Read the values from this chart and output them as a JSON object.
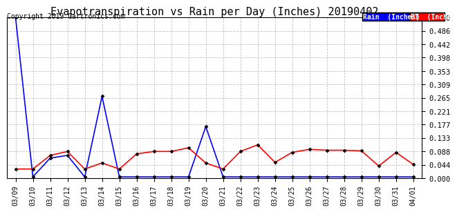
{
  "title": "Evapotranspiration vs Rain per Day (Inches) 20190402",
  "copyright": "Copyright 2019 Cartronics.com",
  "x_labels": [
    "03/09",
    "03/10",
    "03/11",
    "03/12",
    "03/13",
    "03/14",
    "03/15",
    "03/16",
    "03/17",
    "03/18",
    "03/19",
    "03/20",
    "03/21",
    "03/22",
    "03/23",
    "03/24",
    "03/25",
    "03/26",
    "03/27",
    "03/28",
    "03/29",
    "03/30",
    "03/31",
    "04/01"
  ],
  "rain": [
    0.53,
    0.004,
    0.066,
    0.075,
    0.004,
    0.27,
    0.004,
    0.004,
    0.004,
    0.004,
    0.004,
    0.17,
    0.004,
    0.004,
    0.004,
    0.004,
    0.004,
    0.004,
    0.004,
    0.004,
    0.004,
    0.004,
    0.004,
    0.004
  ],
  "et": [
    0.03,
    0.03,
    0.075,
    0.088,
    0.03,
    0.05,
    0.03,
    0.08,
    0.088,
    0.088,
    0.1,
    0.05,
    0.03,
    0.088,
    0.11,
    0.052,
    0.085,
    0.095,
    0.092,
    0.092,
    0.09,
    0.04,
    0.085,
    0.045
  ],
  "ylim": [
    0.0,
    0.53
  ],
  "yticks": [
    0.0,
    0.044,
    0.088,
    0.133,
    0.177,
    0.221,
    0.265,
    0.309,
    0.353,
    0.398,
    0.442,
    0.486,
    0.53
  ],
  "rain_color": "#0000FF",
  "et_color": "#FF0000",
  "bg_color": "#FFFFFF",
  "legend_rain_bg": "#0000FF",
  "legend_et_bg": "#FF0000",
  "legend_rain_label": "Rain  (Inches)",
  "legend_et_label": "ET  (Inches)",
  "title_fontsize": 11,
  "copyright_fontsize": 7
}
